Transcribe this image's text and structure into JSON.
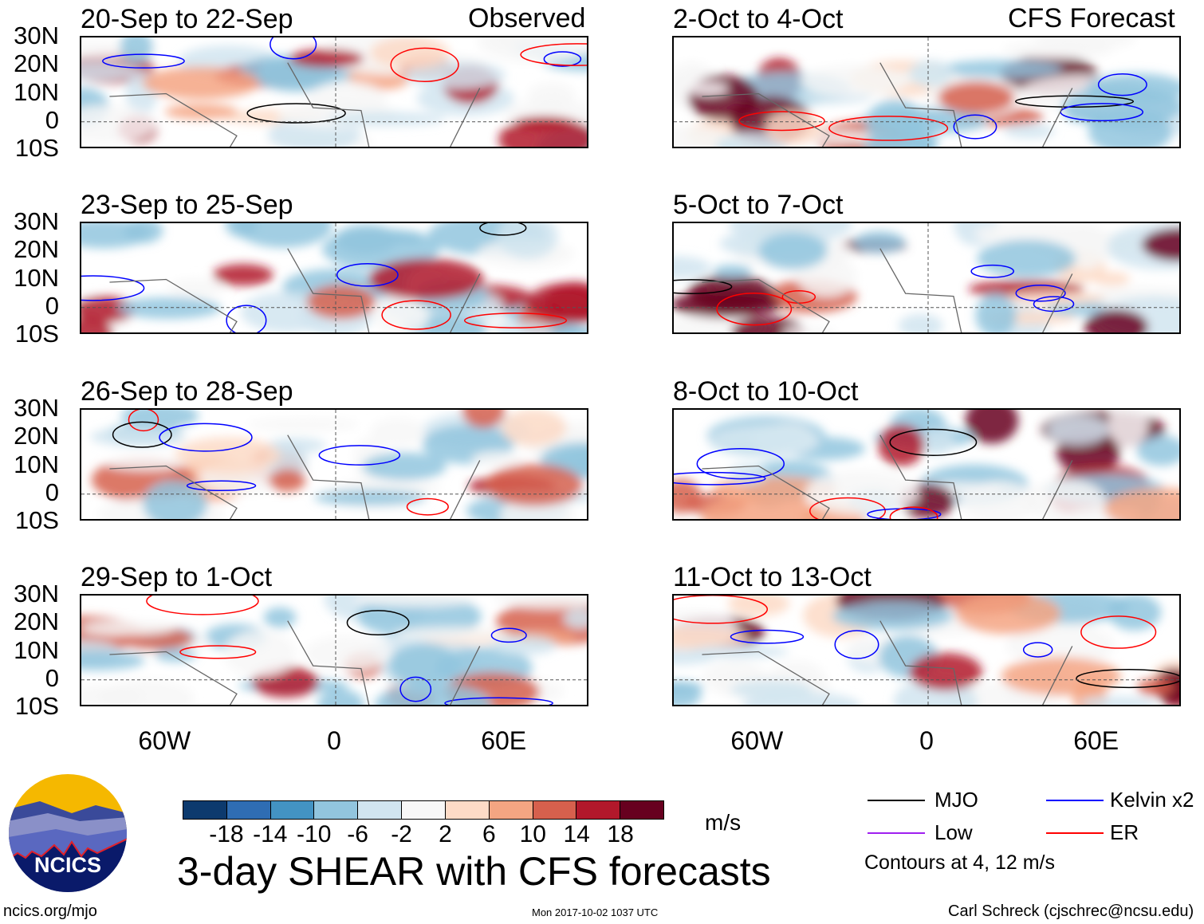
{
  "chart_data": {
    "type": "heatmap",
    "title": "3-day SHEAR with CFS forecasts",
    "units": "m/s",
    "column_labels": [
      "Observed",
      "CFS Forecast"
    ],
    "panels": [
      {
        "title": "20-Sep to 22-Sep",
        "column": "Observed"
      },
      {
        "title": "23-Sep to 25-Sep",
        "column": "Observed"
      },
      {
        "title": "26-Sep to 28-Sep",
        "column": "Observed"
      },
      {
        "title": "29-Sep to 1-Oct",
        "column": "Observed"
      },
      {
        "title": "2-Oct to 4-Oct",
        "column": "CFS Forecast"
      },
      {
        "title": "5-Oct to 7-Oct",
        "column": "CFS Forecast"
      },
      {
        "title": "8-Oct to 10-Oct",
        "column": "CFS Forecast"
      },
      {
        "title": "11-Oct to 13-Oct",
        "column": "CFS Forecast"
      }
    ],
    "lat_ticks": [
      "30N",
      "20N",
      "10N",
      "0",
      "10S"
    ],
    "lat_values": [
      30,
      20,
      10,
      0,
      -10
    ],
    "lon_ticks": [
      "60W",
      "0",
      "60E"
    ],
    "lon_values": [
      -60,
      0,
      60
    ],
    "lon_range": [
      -90,
      90
    ],
    "lat_range": [
      -10,
      30
    ],
    "colorbar": {
      "levels": [
        "-18",
        "-14",
        "-10",
        "-6",
        "-2",
        "2",
        "6",
        "10",
        "14",
        "18"
      ],
      "colors": [
        "#0d3a6e",
        "#2f6db3",
        "#4393c3",
        "#92c5de",
        "#d1e5f0",
        "#f7f7f7",
        "#fddbc7",
        "#f4a582",
        "#d6604d",
        "#b2182b",
        "#67001f"
      ]
    },
    "legend": [
      {
        "label": "MJO",
        "color": "#000000"
      },
      {
        "label": "Kelvin x2",
        "color": "#0000ff"
      },
      {
        "label": "Low",
        "color": "#a020f0"
      },
      {
        "label": "ER",
        "color": "#ff0000"
      }
    ],
    "contour_note": "Contours at 4, 12 m/s"
  },
  "footer": {
    "logo_text": "NCICS",
    "url": "ncics.org/mjo",
    "timestamp": "Mon 2017-10-02 1037 UTC",
    "credit": "Carl Schreck (cjschrec@ncsu.edu)"
  }
}
